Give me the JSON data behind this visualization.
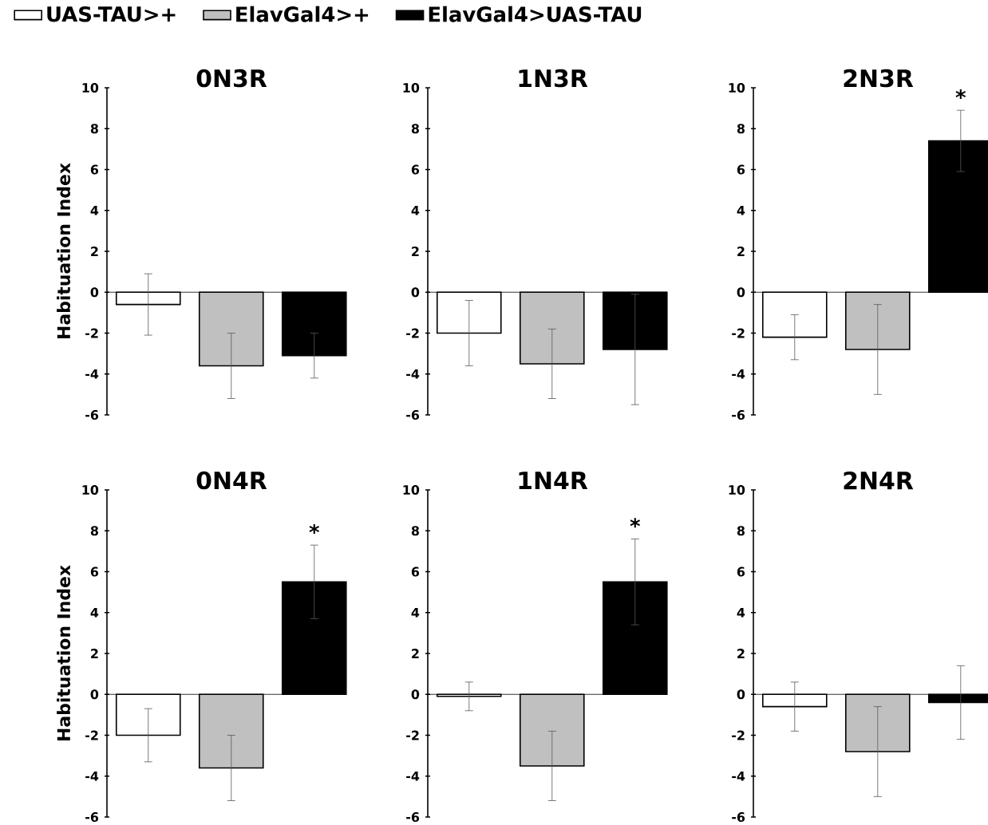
{
  "chart_data": [
    {
      "type": "bar",
      "title": "0N3R",
      "ylabel": "Habituation Index",
      "categories": [
        null
      ],
      "legend": "top",
      "tick_labels": "y",
      "ylim": [
        -6,
        10
      ],
      "yticks": [
        -6,
        -4,
        -2,
        0,
        2,
        4,
        6,
        8,
        10
      ],
      "series": [
        {
          "name": "UAS-TAU>+",
          "color": "#ffffff",
          "values": [
            -0.6
          ],
          "errors": [
            1.5
          ]
        },
        {
          "name": "ElavGal4>+",
          "color": "#c0c0c0",
          "values": [
            -3.6
          ],
          "errors": [
            1.6
          ]
        },
        {
          "name": "ElavGal4>UAS-TAU",
          "color": "#000000",
          "values": [
            -3.1
          ],
          "errors": [
            1.1
          ]
        }
      ]
    },
    {
      "type": "bar",
      "title": "1N3R",
      "categories": [
        null
      ],
      "tick_labels": "y",
      "ylim": [
        -6,
        10
      ],
      "yticks": [
        -6,
        -4,
        -2,
        0,
        2,
        4,
        6,
        8,
        10
      ],
      "series": [
        {
          "color": "#ffffff",
          "values": [
            -2.0
          ],
          "errors": [
            1.6
          ]
        },
        {
          "color": "#c0c0c0",
          "values": [
            -3.5
          ],
          "errors": [
            1.7
          ]
        },
        {
          "color": "#000000",
          "values": [
            -2.8
          ],
          "errors": [
            2.7
          ]
        }
      ]
    },
    {
      "type": "bar",
      "title": "2N3R",
      "categories": [
        null
      ],
      "tick_labels": "y",
      "ylim": [
        -6,
        10
      ],
      "yticks": [
        -6,
        -4,
        -2,
        0,
        2,
        4,
        6,
        8,
        10
      ],
      "annotations": [
        "*"
      ],
      "series": [
        {
          "color": "#ffffff",
          "values": [
            -2.2
          ],
          "errors": [
            1.1
          ]
        },
        {
          "color": "#c0c0c0",
          "values": [
            -2.8
          ],
          "errors": [
            2.2
          ]
        },
        {
          "color": "#000000",
          "values": [
            7.4
          ],
          "errors": [
            1.5
          ]
        }
      ]
    },
    {
      "type": "bar",
      "title": "0N4R",
      "ylabel": "Habituation Index",
      "categories": [
        null
      ],
      "tick_labels": "y",
      "ylim": [
        -6,
        10
      ],
      "yticks": [
        -6,
        -4,
        -2,
        0,
        2,
        4,
        6,
        8,
        10
      ],
      "annotations": [
        "*"
      ],
      "series": [
        {
          "color": "#ffffff",
          "values": [
            -2.0
          ],
          "errors": [
            1.3
          ]
        },
        {
          "color": "#c0c0c0",
          "values": [
            -3.6
          ],
          "errors": [
            1.6
          ]
        },
        {
          "color": "#000000",
          "values": [
            5.5
          ],
          "errors": [
            1.8
          ]
        }
      ]
    },
    {
      "type": "bar",
      "title": "1N4R",
      "categories": [
        null
      ],
      "tick_labels": "y",
      "ylim": [
        -6,
        10
      ],
      "yticks": [
        -6,
        -4,
        -2,
        0,
        2,
        4,
        6,
        8,
        10
      ],
      "annotations": [
        "*"
      ],
      "series": [
        {
          "color": "#ffffff",
          "values": [
            -0.1
          ],
          "errors": [
            0.7
          ]
        },
        {
          "color": "#c0c0c0",
          "values": [
            -3.5
          ],
          "errors": [
            1.7
          ]
        },
        {
          "color": "#000000",
          "values": [
            5.5
          ],
          "errors": [
            2.1
          ]
        }
      ]
    },
    {
      "type": "bar",
      "title": "2N4R",
      "categories": [
        null
      ],
      "tick_labels": "y",
      "ylim": [
        -6,
        10
      ],
      "yticks": [
        -6,
        -4,
        -2,
        0,
        2,
        4,
        6,
        8,
        10
      ],
      "series": [
        {
          "color": "#ffffff",
          "values": [
            -0.6
          ],
          "errors": [
            1.2
          ]
        },
        {
          "color": "#c0c0c0",
          "values": [
            -2.8
          ],
          "errors": [
            2.2
          ]
        },
        {
          "color": "#000000",
          "values": [
            -0.4
          ],
          "errors": [
            1.8
          ]
        }
      ]
    }
  ]
}
